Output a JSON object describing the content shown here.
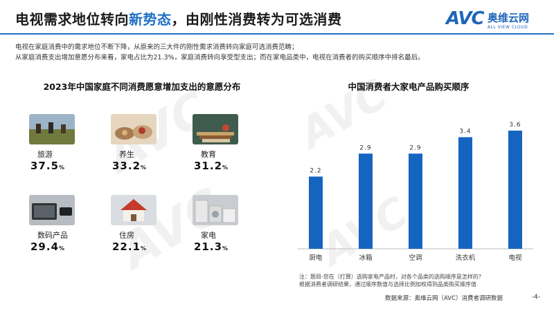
{
  "header": {
    "title_pre": "电视需求地位转向",
    "title_accent": "新势态",
    "title_post": "，由刚性消费转为可选消费",
    "logo_mark": "AVC",
    "logo_cn": "奥维云网",
    "logo_en": "ALL VIEW CLOUD"
  },
  "description": [
    "电视在家庭消费中的需求地位不断下降，从原来的三大件的刚性需求消费转向家庭可选消费范畴；",
    "从家庭消费支出增加意愿分布来看，家电占比为21.3%，家庭消费转向享受型支出；而在家电品类中，电视在消费者的购买顺序中排名最后。"
  ],
  "left_panel": {
    "title": "2023年中国家庭不同消费愿意增加支出的意愿分布",
    "items": [
      {
        "label": "旅游",
        "value": "37.5",
        "unit": "%",
        "icon": "travel-photo"
      },
      {
        "label": "养生",
        "value": "33.2",
        "unit": "%",
        "icon": "health-photo"
      },
      {
        "label": "教育",
        "value": "31.2",
        "unit": "%",
        "icon": "education-photo"
      },
      {
        "label": "数码产品",
        "value": "29.4",
        "unit": "%",
        "icon": "digital-photo"
      },
      {
        "label": "住房",
        "value": "22.1",
        "unit": "%",
        "icon": "housing-photo"
      },
      {
        "label": "家电",
        "value": "21.3",
        "unit": "%",
        "icon": "appliance-photo"
      }
    ]
  },
  "chart_data": {
    "type": "bar",
    "title": "中国消费者大家电产品购买顺序",
    "categories": [
      "厨电",
      "冰箱",
      "空调",
      "洗衣机",
      "电视"
    ],
    "values": [
      2.2,
      2.9,
      2.9,
      3.4,
      3.6
    ],
    "data_labels": [
      "2.2",
      "2.9",
      "2.9",
      "3.4",
      "3.6"
    ],
    "ylim": [
      0,
      4
    ],
    "grid": false,
    "bar_color": "#1565c0"
  },
  "notes": [
    "注：题目-您在（打算）选购家电产品时，对各个品类的选购顺序是怎样的？",
    "根据消费者调研结果，通过顺序数值与选择比例加权得到品类购买顺序值"
  ],
  "source": "数据来源：奥维云网（AVC）消费者调研数据",
  "page_number": "-4-",
  "colors": {
    "accent": "#1f6fc4",
    "bar": "#1565c0"
  }
}
